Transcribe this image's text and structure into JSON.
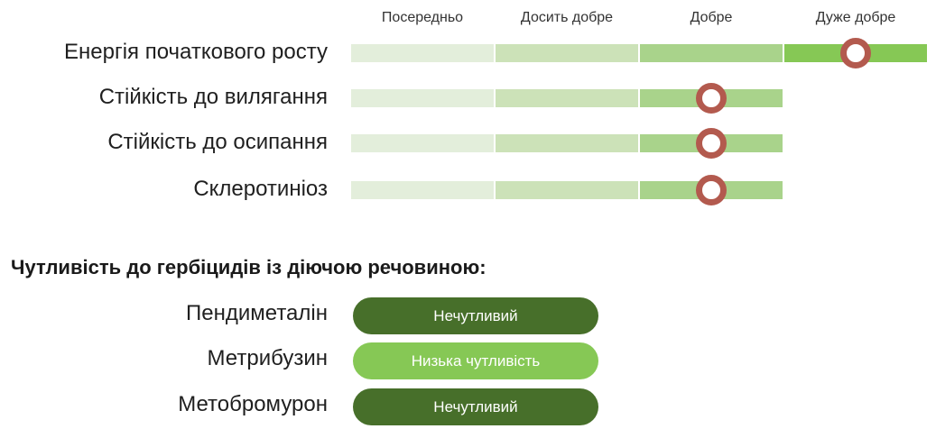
{
  "colors": {
    "level_1": "#e3eedb",
    "level_2": "#cce2b8",
    "level_3": "#a9d38b",
    "level_4": "#86c855",
    "marker": "#b35a4e",
    "insensitive": "#476f2a",
    "low_sensitivity": "#86c855"
  },
  "chart_data": {
    "type": "rating-scale",
    "levels": [
      "Посередньо",
      "Досить добре",
      "Добре",
      "Дуже добре"
    ],
    "traits": [
      {
        "name": "Енергія початкового росту",
        "rating": 3.5,
        "rating_label": "Дуже добре"
      },
      {
        "name": "Стійкість до вилягання",
        "rating": 2.5,
        "rating_label": "Добре"
      },
      {
        "name": "Стійкість до осипання",
        "rating": 2.5,
        "rating_label": "Добре"
      },
      {
        "name": "Склеротиніоз",
        "rating": 2.5,
        "rating_label": "Добре"
      }
    ]
  },
  "herbicides": {
    "title": "Чутливість до гербіцидів із діючою речовиною:",
    "items": [
      {
        "name": "Пендиметалін",
        "status": "Нечутливий",
        "color": "#476f2a"
      },
      {
        "name": "Метрибузин",
        "status": "Низька чутливість",
        "color": "#86c855"
      },
      {
        "name": "Метобромурон",
        "status": "Нечутливий",
        "color": "#476f2a"
      }
    ]
  }
}
